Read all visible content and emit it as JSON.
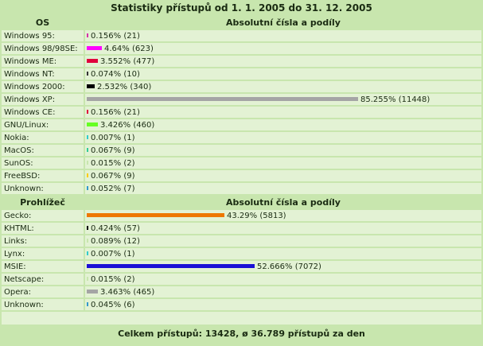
{
  "title": "Statistiky přístupů od 1. 1. 2005 do 31. 12. 2005",
  "os_section": {
    "label_header": "OS",
    "value_header": "Absolutní čísla a podíly",
    "rows": [
      {
        "label": "Windows 95:",
        "percent": "0.156%",
        "count": "(21)",
        "fraction": 0.00156,
        "color": "#d633a8"
      },
      {
        "label": "Windows 98/98SE:",
        "percent": "4.64%",
        "count": "(623)",
        "fraction": 0.0464,
        "color": "#ff00ff"
      },
      {
        "label": "Windows ME:",
        "percent": "3.552%",
        "count": "(477)",
        "fraction": 0.03552,
        "color": "#e0003c"
      },
      {
        "label": "Windows NT:",
        "percent": "0.074%",
        "count": "(10)",
        "fraction": 0.00074,
        "color": "#333333"
      },
      {
        "label": "Windows 2000:",
        "percent": "2.532%",
        "count": "(340)",
        "fraction": 0.02532,
        "color": "#000000"
      },
      {
        "label": "Windows XP:",
        "percent": "85.255%",
        "count": "(11448)",
        "fraction": 0.85255,
        "color": "#a5a5a5"
      },
      {
        "label": "Windows CE:",
        "percent": "0.156%",
        "count": "(21)",
        "fraction": 0.00156,
        "color": "#e0003c"
      },
      {
        "label": "GNU/Linux:",
        "percent": "3.426%",
        "count": "(460)",
        "fraction": 0.03426,
        "color": "#66ff22"
      },
      {
        "label": "Nokia:",
        "percent": "0.007%",
        "count": "(1)",
        "fraction": 7e-05,
        "color": "#33cccc"
      },
      {
        "label": "MacOS:",
        "percent": "0.067%",
        "count": "(9)",
        "fraction": 0.00067,
        "color": "#33cc99"
      },
      {
        "label": "SunOS:",
        "percent": "0.015%",
        "count": "(2)",
        "fraction": 0.00015,
        "color": "#c8e6ae"
      },
      {
        "label": "FreeBSD:",
        "percent": "0.067%",
        "count": "(9)",
        "fraction": 0.00067,
        "color": "#ffcc00"
      },
      {
        "label": "Unknown:",
        "percent": "0.052%",
        "count": "(7)",
        "fraction": 0.00052,
        "color": "#3399cc"
      }
    ]
  },
  "browser_section": {
    "label_header": "Prohlížeč",
    "value_header": "Absolutní čísla a podíly",
    "rows": [
      {
        "label": "Gecko:",
        "percent": "43.29%",
        "count": "(5813)",
        "fraction": 0.4329,
        "color": "#ee7700"
      },
      {
        "label": "KHTML:",
        "percent": "0.424%",
        "count": "(57)",
        "fraction": 0.00424,
        "color": "#000000"
      },
      {
        "label": "Links:",
        "percent": "0.089%",
        "count": "(12)",
        "fraction": 0.00089,
        "color": "#c8e6ae"
      },
      {
        "label": "Lynx:",
        "percent": "0.007%",
        "count": "(1)",
        "fraction": 7e-05,
        "color": "#33cccc"
      },
      {
        "label": "MSIE:",
        "percent": "52.666%",
        "count": "(7072)",
        "fraction": 0.52666,
        "color": "#1a10d6"
      },
      {
        "label": "Netscape:",
        "percent": "0.015%",
        "count": "(2)",
        "fraction": 0.00015,
        "color": "#c8e6ae"
      },
      {
        "label": "Opera:",
        "percent": "3.463%",
        "count": "(465)",
        "fraction": 0.03463,
        "color": "#a5a5a5"
      },
      {
        "label": "Unknown:",
        "percent": "0.045%",
        "count": "(6)",
        "fraction": 0.00045,
        "color": "#3399cc"
      }
    ]
  },
  "footer": "Celkem přístupů: 13428, ø 36.789 přístupů za den"
}
